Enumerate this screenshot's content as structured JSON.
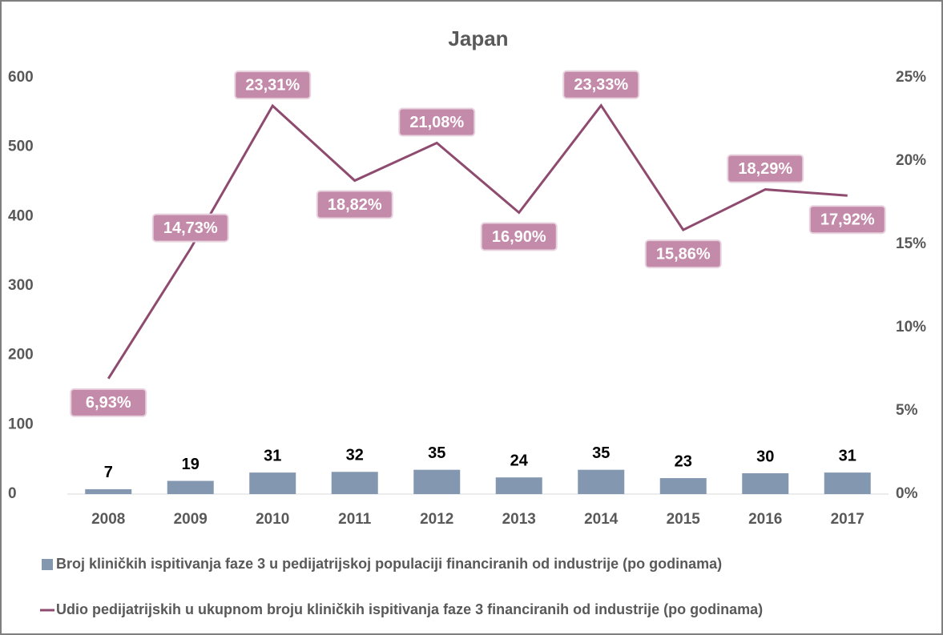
{
  "chart_data": {
    "type": "bar-line",
    "title": "Japan",
    "categories": [
      "2008",
      "2009",
      "2010",
      "2011",
      "2012",
      "2013",
      "2014",
      "2015",
      "2016",
      "2017"
    ],
    "series": [
      {
        "name": "Broj kliničkih ispitivanja faze 3 u pedijatrijskoj populaciji financiranih od industrije (po godinama)",
        "type": "bar",
        "color": "#8497b0",
        "values": [
          7,
          19,
          31,
          32,
          35,
          24,
          35,
          23,
          30,
          31
        ]
      },
      {
        "name": "Udio pedijatrijskih u ukupnom broju kliničkih ispitivanja faze 3 financiranih od industrije (po godinama)",
        "type": "line",
        "color": "#8e4b6f",
        "axis": "y2",
        "values": [
          6.93,
          14.73,
          23.31,
          18.82,
          21.08,
          16.9,
          23.33,
          15.86,
          18.29,
          17.92
        ],
        "value_labels": [
          "6,93%",
          "14,73%",
          "23,31%",
          "18,82%",
          "21,08%",
          "16,90%",
          "23,33%",
          "15,86%",
          "18,29%",
          "17,92%"
        ],
        "label_color": "#c48aa9"
      }
    ],
    "ylim": [
      0,
      600
    ],
    "yticks": [
      0,
      100,
      200,
      300,
      400,
      500,
      600
    ],
    "y2lim": [
      0,
      25
    ],
    "y2ticks": [
      {
        "value": 0,
        "label": "0%"
      },
      {
        "value": 5,
        "label": "5%"
      },
      {
        "value": 10,
        "label": "10%"
      },
      {
        "value": 15,
        "label": "15%"
      },
      {
        "value": 20,
        "label": "20%"
      },
      {
        "value": 25,
        "label": "25%"
      }
    ],
    "grid": false,
    "legend": "bottom"
  }
}
